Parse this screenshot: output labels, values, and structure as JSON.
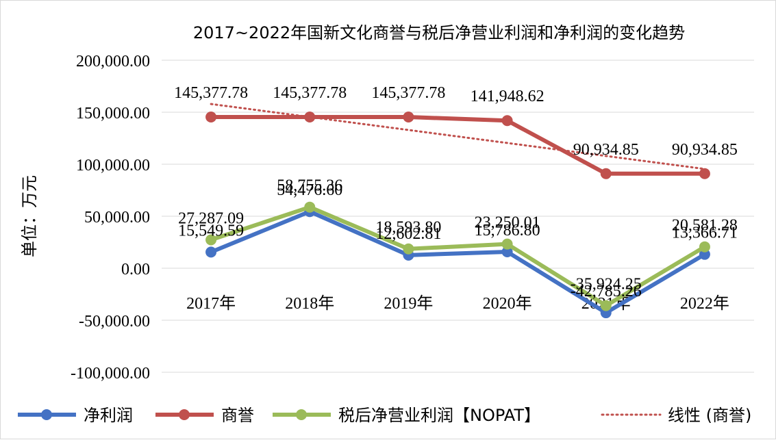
{
  "chart_data": {
    "type": "line",
    "title": "2017~2022年国新文化商誉与税后净营业利润和净利润的变化趋势",
    "ylabel": "单位：万元",
    "xlabel": "",
    "ylim": [
      -100000,
      200000
    ],
    "y_ticks": [
      -100000,
      -50000,
      0,
      50000,
      100000,
      150000,
      200000
    ],
    "y_tick_labels": [
      "-100,000.00",
      "-50,000.00",
      "0.00",
      "50,000.00",
      "100,000.00",
      "150,000.00",
      "200,000.00"
    ],
    "categories": [
      "2017年",
      "2018年",
      "2019年",
      "2020年",
      "2021年",
      "2022年"
    ],
    "grid": true,
    "legend_position": "bottom",
    "series": [
      {
        "name": "净利润",
        "color": "#4472c4",
        "values": [
          15549.59,
          54476.6,
          12602.81,
          15786.8,
          -42785.26,
          13366.71
        ],
        "labels": [
          "15,549.59",
          "54,476.60",
          "12,602.81",
          "15,786.80",
          "-42,785.26",
          "13,366.71"
        ]
      },
      {
        "name": "商誉",
        "color": "#c0504d",
        "values": [
          145377.78,
          145377.78,
          145377.78,
          141948.62,
          90934.85,
          90934.85
        ],
        "labels": [
          "145,377.78",
          "145,377.78",
          "145,377.78",
          "141,948.62",
          "90,934.85",
          "90,934.85"
        ]
      },
      {
        "name": "税后净营业利润【NOPAT】",
        "color": "#9bbb59",
        "values": [
          27287.09,
          58755.36,
          18593.8,
          23250.01,
          -35924.25,
          20581.28
        ],
        "labels": [
          "27,287.09",
          "58,755.36",
          "18,593.80",
          "23,250.01",
          "-35,924.25",
          "20,581.28"
        ]
      }
    ],
    "trendline": {
      "name": "线性 (商誉)",
      "color": "#c0504d",
      "start": 157893,
      "end": 95450
    }
  }
}
